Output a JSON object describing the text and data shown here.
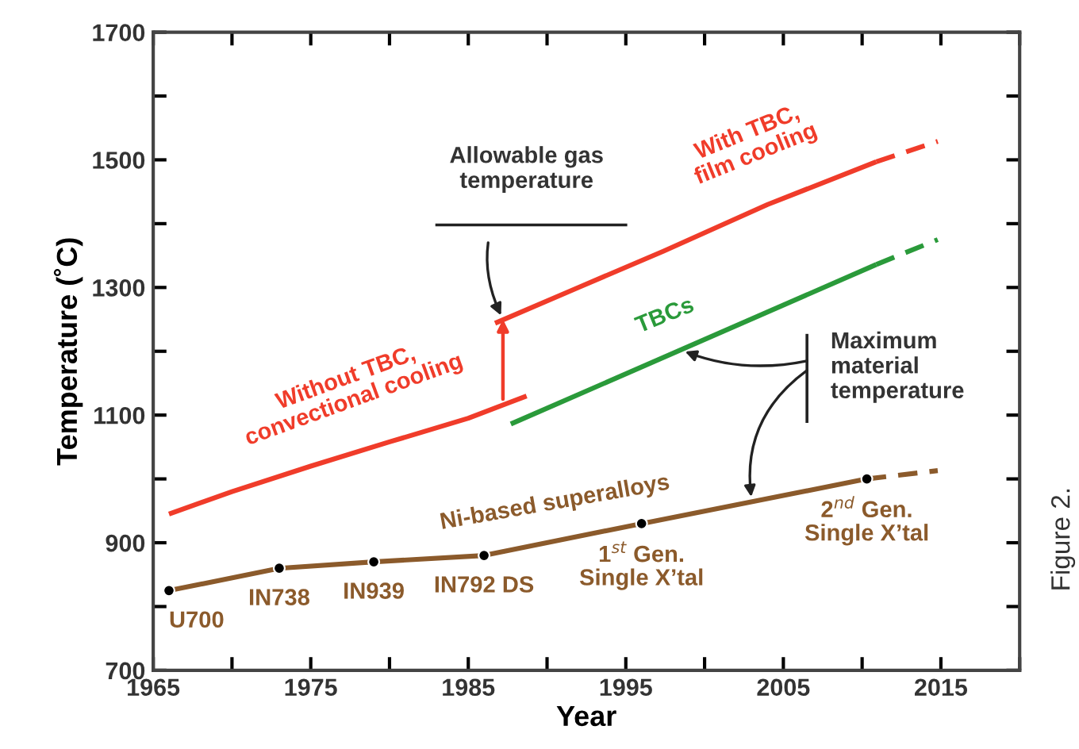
{
  "chart_data": {
    "type": "line",
    "xlabel": "Year",
    "ylabel": "Temperature (˚C)",
    "xlim": [
      1965,
      2020
    ],
    "ylim": [
      700,
      1700
    ],
    "xticks": [
      1965,
      {
        "value": 1970,
        "label": null
      },
      1975,
      {
        "value": 1980,
        "label": null
      },
      1985,
      {
        "value": 1990,
        "label": null
      },
      1995,
      {
        "value": 2000,
        "label": null
      },
      2005,
      {
        "value": 2010,
        "label": null
      },
      2015,
      {
        "value": 2020,
        "label": null
      }
    ],
    "yticks": [
      700,
      {
        "value": 800,
        "label": null
      },
      900,
      {
        "value": 1000,
        "label": null
      },
      1100,
      {
        "value": 1200,
        "label": null
      },
      1300,
      {
        "value": 1400,
        "label": null
      },
      1500,
      {
        "value": 1600,
        "label": null
      },
      1700
    ],
    "grid": false,
    "series": [
      {
        "color": "#f03c2a",
        "x": [
          1966,
          1970,
          1975,
          1980,
          1985,
          1988.7
        ],
        "values": [
          945,
          980,
          1020,
          1058,
          1095,
          1130
        ],
        "marker": "none",
        "line_style": "solid"
      },
      {
        "color": "#f03c2a",
        "x": [
          1986.7,
          1992,
          1997.4,
          2004,
          2010.9
        ],
        "values": [
          1244,
          1300,
          1357,
          1430,
          1497
        ],
        "marker": "none",
        "line_style": "solid"
      },
      {
        "color": "#f03c2a",
        "x": [
          2010.9,
          2014.8
        ],
        "values": [
          1497,
          1529
        ],
        "marker": "none",
        "line_style": "dashed"
      },
      {
        "color": "#2a9a3a",
        "x": [
          1987.7,
          2010.9
        ],
        "values": [
          1086,
          1336
        ],
        "marker": "none",
        "line_style": "solid"
      },
      {
        "color": "#2a9a3a",
        "x": [
          2010.9,
          2014.8
        ],
        "values": [
          1336,
          1375
        ],
        "marker": "none",
        "line_style": "dashed"
      },
      {
        "color": "#8b5a2b",
        "x": [
          1966,
          1973,
          1979,
          1986,
          1996,
          2010.3
        ],
        "values": [
          825,
          860,
          870,
          880,
          930,
          1000
        ],
        "marker": "circle",
        "line_style": "solid"
      },
      {
        "color": "#8b5a2b",
        "x": [
          2010.3,
          2014.8
        ],
        "values": [
          1000,
          1013
        ],
        "marker": "none",
        "line_style": "dashed"
      }
    ],
    "annotations": [
      "Without TBC,\nconvectional cooling",
      "With TBC,\nfilm cooling",
      "TBCs",
      "Ni-based superalloys",
      {
        "text": "U700",
        "x": 1966,
        "y": 825
      },
      {
        "text": "IN738",
        "x": 1973,
        "y": 860
      },
      {
        "text": "IN939",
        "x": 1979,
        "y": 870
      },
      {
        "text": "IN792 DS",
        "x": 1986,
        "y": 880
      },
      {
        "text": "1$^{st}$ Gen.\nSingle X’tal",
        "x": 1996,
        "y": 930
      },
      {
        "text": "2$^{nd}$ Gen.\nSingle X’tal",
        "x": 2010.3,
        "y": 1000
      },
      "Allowable gas\ntemperature",
      {
        "text": "Maximum\nmaterial\ntemperature",
        "x": 1998.5,
        "y": 1202
      },
      "Figure 2."
    ]
  }
}
